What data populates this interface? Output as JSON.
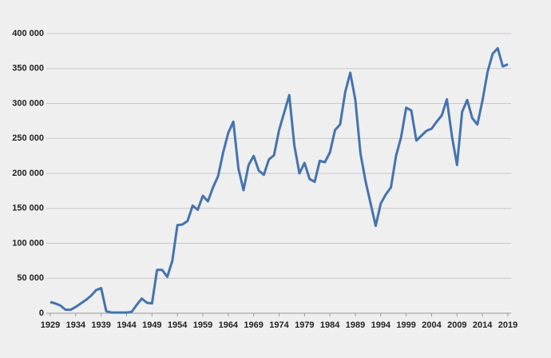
{
  "chart_data": {
    "type": "line",
    "x": [
      1929,
      1930,
      1931,
      1932,
      1933,
      1934,
      1935,
      1936,
      1937,
      1938,
      1939,
      1940,
      1941,
      1942,
      1943,
      1944,
      1945,
      1946,
      1947,
      1948,
      1949,
      1950,
      1951,
      1952,
      1953,
      1954,
      1955,
      1956,
      1957,
      1958,
      1959,
      1960,
      1961,
      1962,
      1963,
      1964,
      1965,
      1966,
      1967,
      1968,
      1969,
      1970,
      1971,
      1972,
      1973,
      1974,
      1975,
      1976,
      1977,
      1978,
      1979,
      1980,
      1981,
      1982,
      1983,
      1984,
      1985,
      1986,
      1987,
      1988,
      1989,
      1990,
      1991,
      1992,
      1993,
      1994,
      1995,
      1996,
      1997,
      1998,
      1999,
      2000,
      2001,
      2002,
      2003,
      2004,
      2005,
      2006,
      2007,
      2008,
      2009,
      2010,
      2011,
      2012,
      2013,
      2014,
      2015,
      2016,
      2017,
      2018,
      2019
    ],
    "series": [
      {
        "color": "#4573ad",
        "values": [
          16000,
          14000,
          11000,
          5000,
          5000,
          9000,
          14000,
          19000,
          25000,
          33000,
          36000,
          3000,
          1000,
          1000,
          1000,
          1000,
          2000,
          12000,
          21000,
          15000,
          14000,
          62000,
          62000,
          52000,
          75000,
          126000,
          127000,
          132000,
          154000,
          148000,
          168000,
          160000,
          180000,
          196000,
          230000,
          258000,
          274000,
          207000,
          176000,
          212000,
          225000,
          204000,
          198000,
          220000,
          226000,
          262000,
          287000,
          312000,
          240000,
          200000,
          215000,
          192000,
          188000,
          218000,
          216000,
          230000,
          262000,
          270000,
          316000,
          344000,
          305000,
          229000,
          189000,
          157000,
          125000,
          157000,
          170000,
          180000,
          225000,
          252000,
          294000,
          290000,
          247000,
          254000,
          261000,
          264000,
          274000,
          283000,
          306000,
          253000,
          212000,
          288000,
          305000,
          279000,
          270000,
          304000,
          345000,
          371000,
          379000,
          353000,
          356000
        ]
      }
    ],
    "xlim": [
      1929,
      2019
    ],
    "xticks": [
      1929,
      1934,
      1939,
      1944,
      1949,
      1954,
      1959,
      1964,
      1969,
      1974,
      1979,
      1984,
      1989,
      1994,
      1999,
      2004,
      2009,
      2014,
      2019
    ],
    "ylim": [
      0,
      400000
    ],
    "yticks": [
      {
        "value": 0,
        "label": "0"
      },
      {
        "value": 50000,
        "label": "50 000"
      },
      {
        "value": 100000,
        "label": "100 000"
      },
      {
        "value": 150000,
        "label": "150 000"
      },
      {
        "value": 200000,
        "label": "200 000"
      },
      {
        "value": 250000,
        "label": "250 000"
      },
      {
        "value": 300000,
        "label": "300 000"
      },
      {
        "value": 350000,
        "label": "350 000"
      },
      {
        "value": 400000,
        "label": "400 000"
      }
    ],
    "grid": true
  }
}
